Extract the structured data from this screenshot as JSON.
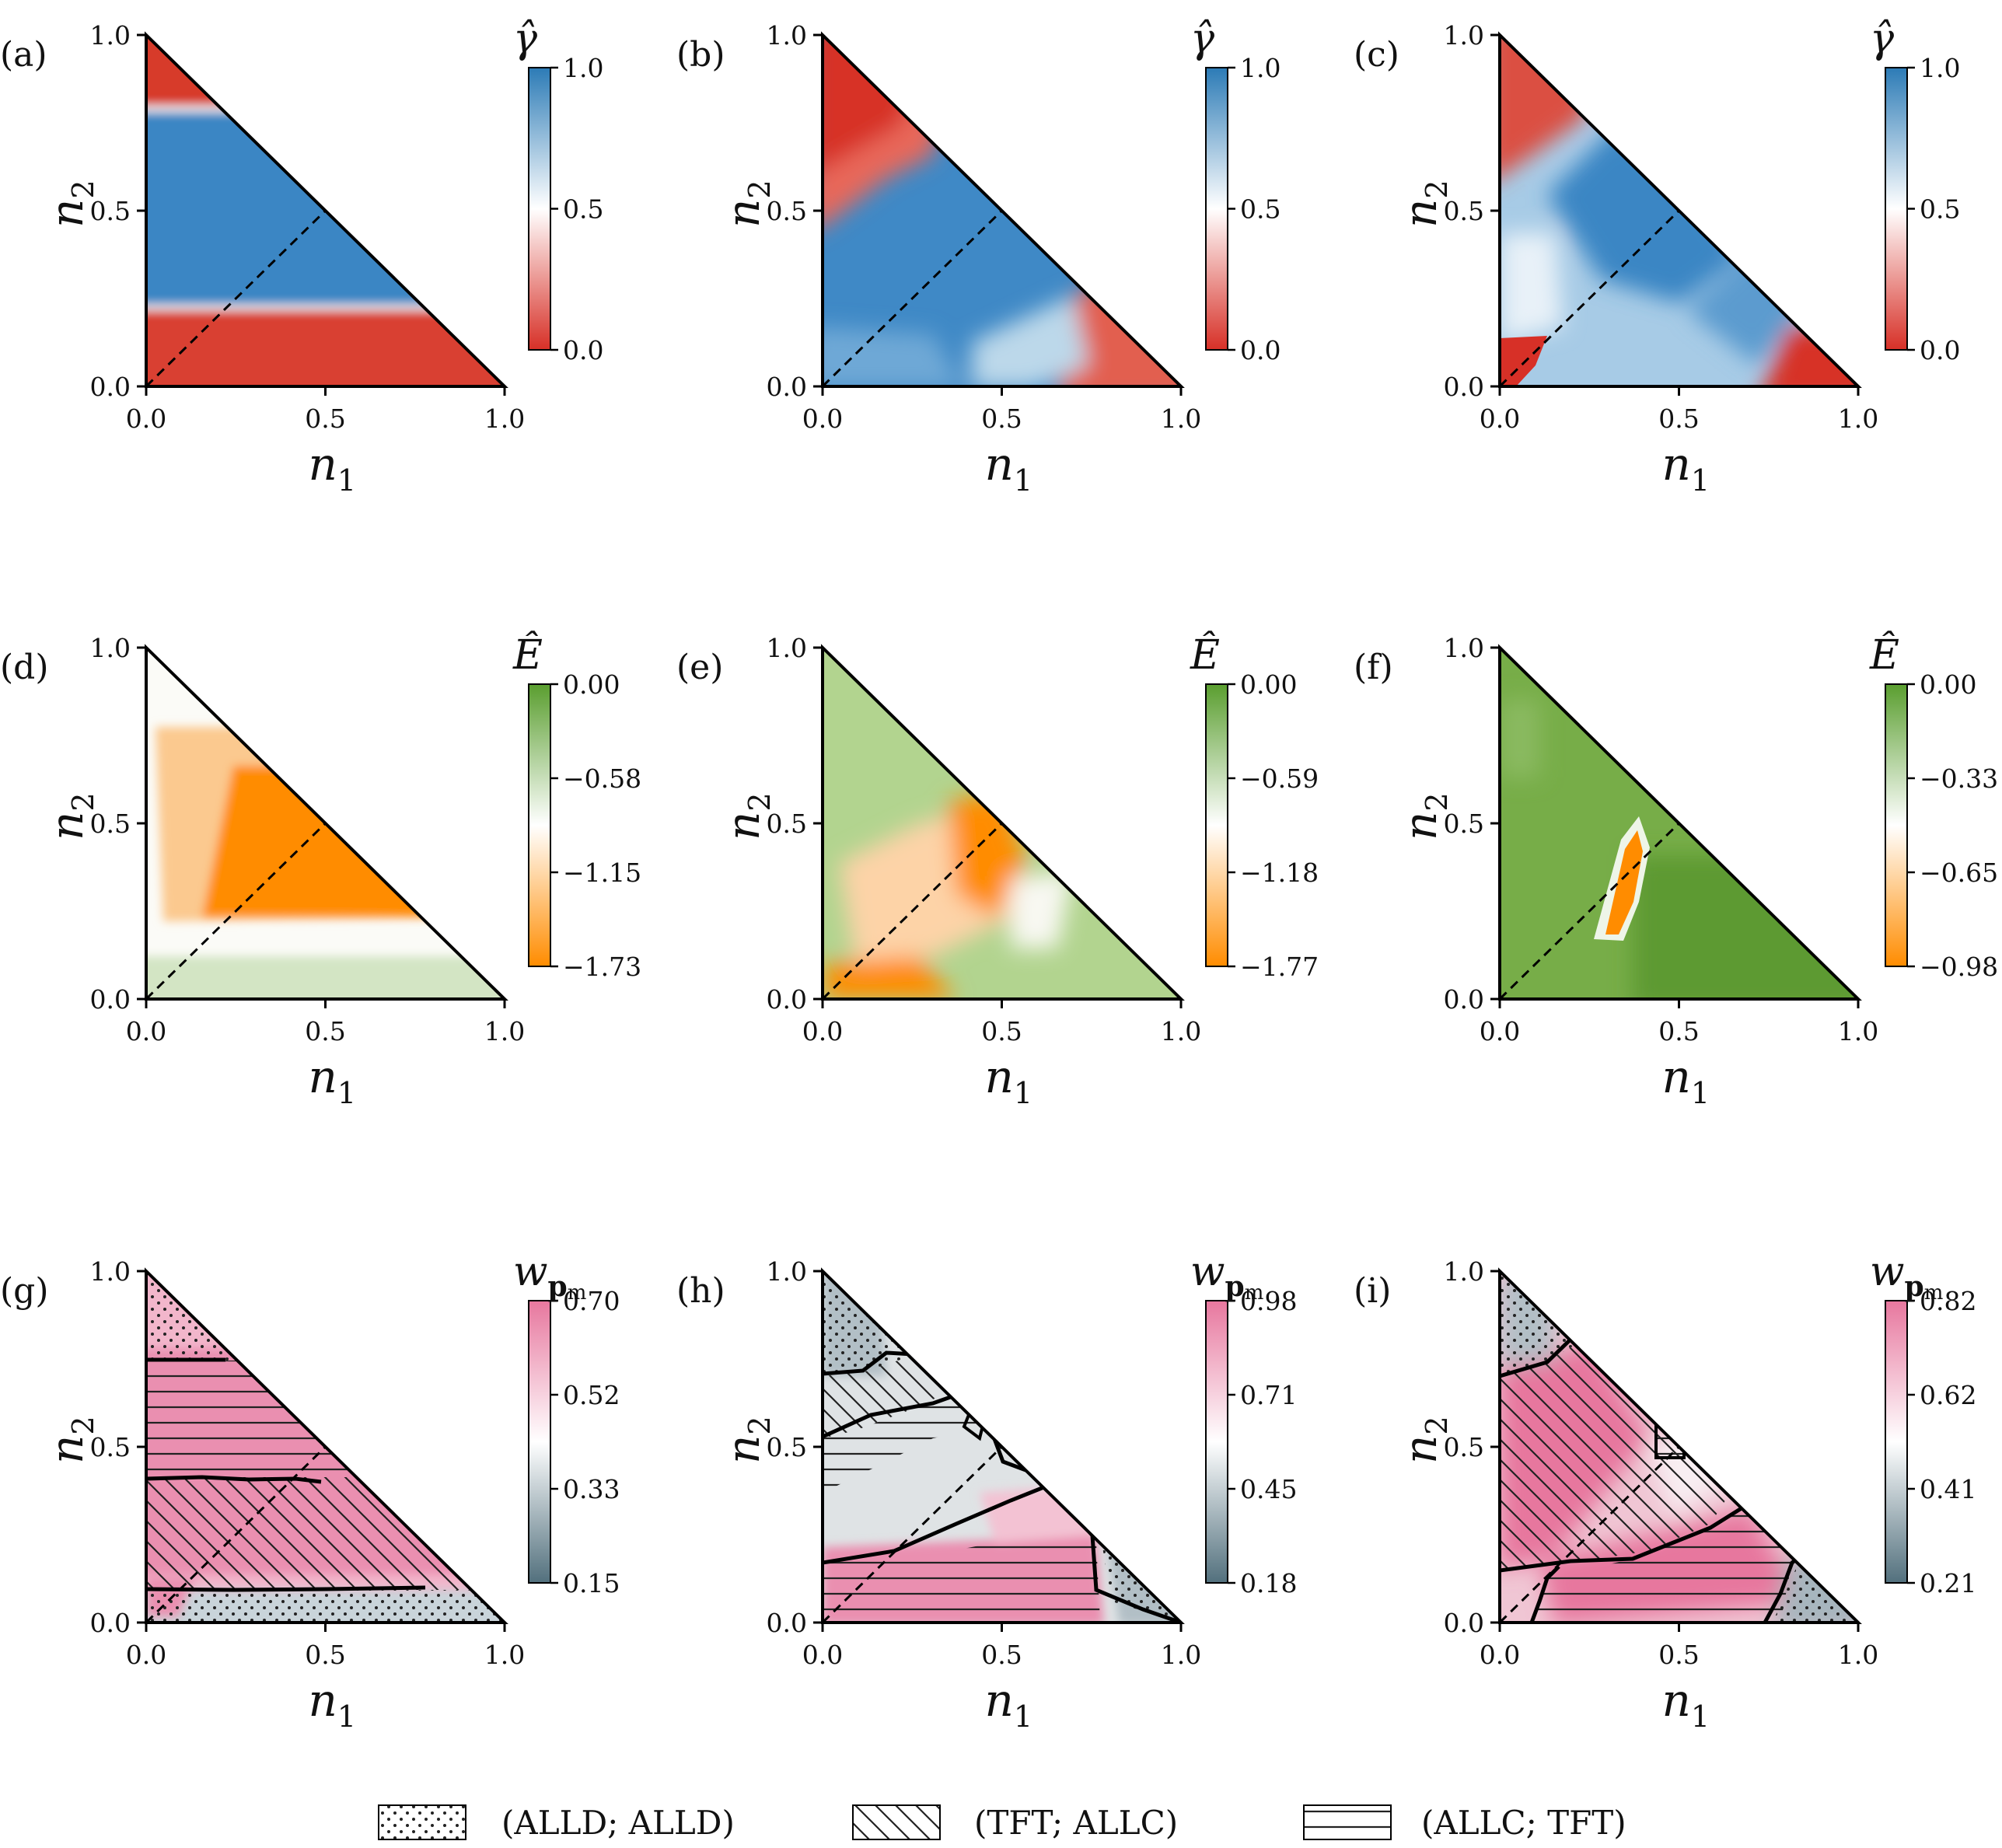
{
  "chart_data": {
    "type": "heatmap",
    "figure": "Ternary-style triangular heatmaps over (n1, n2), 3x3 grid of panels",
    "x_ticks": [
      "0.0",
      "0.5",
      "1.0"
    ],
    "y_ticks": [
      "0.0",
      "0.5",
      "1.0"
    ],
    "xlim": [
      0,
      1
    ],
    "ylim": [
      0,
      1
    ],
    "panels": [
      {
        "id": "a",
        "label": "(a)",
        "xlabel": "n",
        "xsub": "1",
        "ylabel": "n",
        "ysub": "2",
        "colorbar": {
          "title": "γ̂",
          "ticks": [
            "1.0",
            "0.5",
            "0.0"
          ],
          "min": 0.0,
          "max": 1.0,
          "colormap": [
            "#d73027",
            "#ffffff",
            "#2c7bb6"
          ]
        },
        "bands": [
          {
            "from": 0.0,
            "to": 0.22,
            "value": 0.05
          },
          {
            "from": 0.22,
            "to": 0.77,
            "value": 0.9
          },
          {
            "from": 0.77,
            "to": 1.0,
            "value": 0.1
          }
        ]
      },
      {
        "id": "b",
        "label": "(b)",
        "xlabel": "n",
        "xsub": "1",
        "ylabel": "n",
        "ysub": "2",
        "colorbar": {
          "title": "γ̂",
          "ticks": [
            "1.0",
            "0.5",
            "0.0"
          ],
          "min": 0.0,
          "max": 1.0,
          "colormap": [
            "#d73027",
            "#ffffff",
            "#2c7bb6"
          ]
        }
      },
      {
        "id": "c",
        "label": "(c)",
        "xlabel": "n",
        "xsub": "1",
        "ylabel": "n",
        "ysub": "2",
        "colorbar": {
          "title": "γ̂",
          "ticks": [
            "1.0",
            "0.5",
            "0.0"
          ],
          "min": 0.0,
          "max": 1.0,
          "colormap": [
            "#d73027",
            "#ffffff",
            "#2c7bb6"
          ]
        }
      },
      {
        "id": "d",
        "label": "(d)",
        "xlabel": "n",
        "xsub": "1",
        "ylabel": "n",
        "ysub": "2",
        "colorbar": {
          "title": "Ê",
          "ticks": [
            "0.00",
            "−0.58",
            "−1.15",
            "−1.73"
          ],
          "min": -1.73,
          "max": 0.0,
          "colormap": [
            "#ff8c00",
            "#ffffff",
            "#5a9e2f"
          ]
        }
      },
      {
        "id": "e",
        "label": "(e)",
        "xlabel": "n",
        "xsub": "1",
        "ylabel": "n",
        "ysub": "2",
        "colorbar": {
          "title": "Ê",
          "ticks": [
            "0.00",
            "−0.59",
            "−1.18",
            "−1.77"
          ],
          "min": -1.77,
          "max": 0.0,
          "colormap": [
            "#ff8c00",
            "#ffffff",
            "#5a9e2f"
          ]
        }
      },
      {
        "id": "f",
        "label": "(f)",
        "xlabel": "n",
        "xsub": "1",
        "ylabel": "n",
        "ysub": "2",
        "colorbar": {
          "title": "Ê",
          "ticks": [
            "0.00",
            "−0.33",
            "−0.65",
            "−0.98"
          ],
          "min": -0.98,
          "max": 0.0,
          "colormap": [
            "#ff8c00",
            "#ffffff",
            "#5a9e2f"
          ]
        }
      },
      {
        "id": "g",
        "label": "(g)",
        "xlabel": "n",
        "xsub": "1",
        "ylabel": "n",
        "ysub": "2",
        "colorbar": {
          "title": "w",
          "sub": "p",
          "subsub": "m",
          "ticks": [
            "0.70",
            "0.52",
            "0.33",
            "0.15"
          ],
          "min": 0.15,
          "max": 0.7,
          "colormap": [
            "#52707d",
            "#ffffff",
            "#e7779e"
          ]
        }
      },
      {
        "id": "h",
        "label": "(h)",
        "xlabel": "n",
        "xsub": "1",
        "ylabel": "n",
        "ysub": "2",
        "colorbar": {
          "title": "w",
          "sub": "p",
          "subsub": "m",
          "ticks": [
            "0.98",
            "0.71",
            "0.45",
            "0.18"
          ],
          "min": 0.18,
          "max": 0.98,
          "colormap": [
            "#52707d",
            "#ffffff",
            "#e7779e"
          ]
        }
      },
      {
        "id": "i",
        "label": "(i)",
        "xlabel": "n",
        "xsub": "1",
        "ylabel": "n",
        "ysub": "2",
        "colorbar": {
          "title": "w",
          "sub": "p",
          "subsub": "m",
          "ticks": [
            "0.82",
            "0.62",
            "0.41",
            "0.21"
          ],
          "min": 0.21,
          "max": 0.82,
          "colormap": [
            "#52707d",
            "#ffffff",
            "#e7779e"
          ]
        }
      }
    ],
    "legend": {
      "placement": "bottom",
      "entries": [
        {
          "label": "(ALLD; ALLD)",
          "pattern": "dots"
        },
        {
          "label": "(TFT; ALLC)",
          "pattern": "diagonal"
        },
        {
          "label": "(ALLC; TFT)",
          "pattern": "horizontal"
        }
      ]
    }
  }
}
